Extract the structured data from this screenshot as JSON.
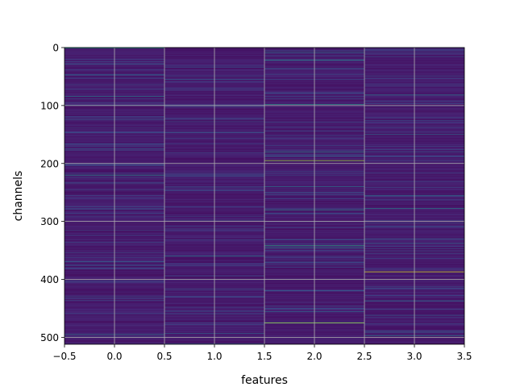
{
  "chart_data": {
    "type": "heatmap",
    "title": "",
    "xlabel": "features",
    "ylabel": "channels",
    "xlim": [
      -0.5,
      3.5
    ],
    "ylim": [
      512,
      0
    ],
    "n_columns": 4,
    "n_rows": 512,
    "colormap": "viridis",
    "grid": true,
    "x_ticks": [
      -0.5,
      0.0,
      0.5,
      1.0,
      1.5,
      2.0,
      2.5,
      3.0,
      3.5
    ],
    "x_tick_labels": [
      "−0.5",
      "0.0",
      "0.5",
      "1.0",
      "1.5",
      "2.0",
      "2.5",
      "3.0",
      "3.5"
    ],
    "y_ticks": [
      0,
      100,
      200,
      300,
      400,
      500
    ],
    "y_tick_labels": [
      "0",
      "100",
      "200",
      "300",
      "400",
      "500"
    ],
    "background_value": 0.04,
    "highlights": [
      {
        "feature": 0,
        "channel": 1,
        "value": 0.55
      },
      {
        "feature": 0,
        "channel": 47,
        "value": 0.35
      },
      {
        "feature": 0,
        "channel": 84,
        "value": 0.45
      },
      {
        "feature": 0,
        "channel": 175,
        "value": 0.3
      },
      {
        "feature": 0,
        "channel": 220,
        "value": 0.5
      },
      {
        "feature": 0,
        "channel": 370,
        "value": 0.3
      },
      {
        "feature": 0,
        "channel": 430,
        "value": 0.3
      },
      {
        "feature": 0,
        "channel": 495,
        "value": 0.4
      },
      {
        "feature": 1,
        "channel": 55,
        "value": 0.3
      },
      {
        "feature": 1,
        "channel": 360,
        "value": 0.45
      },
      {
        "feature": 1,
        "channel": 455,
        "value": 0.3
      },
      {
        "feature": 1,
        "channel": 493,
        "value": 0.35
      },
      {
        "feature": 2,
        "channel": 8,
        "value": 0.4
      },
      {
        "feature": 2,
        "channel": 22,
        "value": 0.5
      },
      {
        "feature": 2,
        "channel": 98,
        "value": 0.55
      },
      {
        "feature": 2,
        "channel": 180,
        "value": 0.5
      },
      {
        "feature": 2,
        "channel": 187,
        "value": 0.45
      },
      {
        "feature": 2,
        "channel": 195,
        "value": 0.85
      },
      {
        "feature": 2,
        "channel": 240,
        "value": 0.4
      },
      {
        "feature": 2,
        "channel": 280,
        "value": 0.5
      },
      {
        "feature": 2,
        "channel": 342,
        "value": 0.6
      },
      {
        "feature": 2,
        "channel": 346,
        "value": 0.45
      },
      {
        "feature": 2,
        "channel": 420,
        "value": 0.3
      },
      {
        "feature": 2,
        "channel": 456,
        "value": 0.35
      },
      {
        "feature": 2,
        "channel": 475,
        "value": 0.9
      },
      {
        "feature": 3,
        "channel": 82,
        "value": 0.45
      },
      {
        "feature": 3,
        "channel": 100,
        "value": 0.4
      },
      {
        "feature": 3,
        "channel": 150,
        "value": 0.35
      },
      {
        "feature": 3,
        "channel": 180,
        "value": 0.3
      },
      {
        "feature": 3,
        "channel": 255,
        "value": 0.4
      },
      {
        "feature": 3,
        "channel": 278,
        "value": 0.5
      },
      {
        "feature": 3,
        "channel": 338,
        "value": 0.35
      },
      {
        "feature": 3,
        "channel": 387,
        "value": 0.95
      },
      {
        "feature": 3,
        "channel": 437,
        "value": 0.4
      },
      {
        "feature": 3,
        "channel": 462,
        "value": 0.3
      },
      {
        "feature": 3,
        "channel": 497,
        "value": 0.45
      }
    ]
  }
}
